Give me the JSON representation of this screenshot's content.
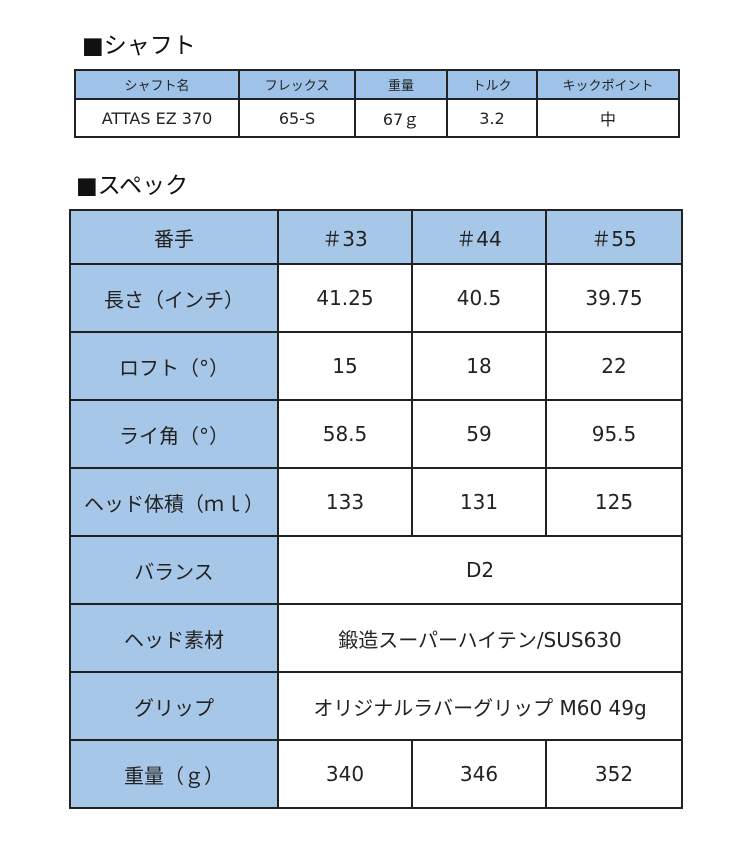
{
  "shaft_section": {
    "title": "■シャフト",
    "headers": [
      "シャフト名",
      "フレックス",
      "重量",
      "トルク",
      "キックポイント"
    ],
    "row": [
      "ATTAS EZ 370",
      "65-S",
      "67ｇ",
      "3.2",
      "中"
    ]
  },
  "spec_section": {
    "title": "■スペック",
    "header": {
      "label": "番手",
      "cols": [
        "＃33",
        "＃44",
        "＃55"
      ]
    },
    "rows": [
      {
        "label": "長さ（インチ）",
        "values": [
          "41.25",
          "40.5",
          "39.75"
        ]
      },
      {
        "label": "ロフト（°）",
        "values": [
          "15",
          "18",
          "22"
        ]
      },
      {
        "label": "ライ角（°）",
        "values": [
          "58.5",
          "59",
          "95.5"
        ]
      },
      {
        "label": "ヘッド体積（ｍｌ）",
        "values": [
          "133",
          "131",
          "125"
        ]
      },
      {
        "label": "バランス",
        "merged": "D2"
      },
      {
        "label": "ヘッド素材",
        "merged": "鍛造スーパーハイテン/SUS630"
      },
      {
        "label": "グリップ",
        "merged": "オリジナルラバーグリップ M60 49g"
      },
      {
        "label": "重量（ｇ）",
        "values": [
          "340",
          "346",
          "352"
        ]
      }
    ]
  }
}
